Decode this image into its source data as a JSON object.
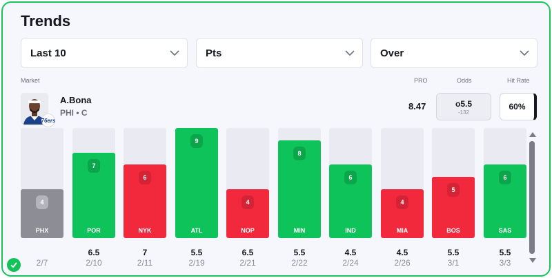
{
  "title": "Trends",
  "filters": [
    {
      "label": "Last 10"
    },
    {
      "label": "Pts"
    },
    {
      "label": "Over"
    }
  ],
  "columns": {
    "market": "Market",
    "pro": "PRO",
    "odds": "Odds",
    "hit_rate": "Hit Rate"
  },
  "player": {
    "name": "A.Bona",
    "team_pos": "PHI • C",
    "team_logo": "76ers"
  },
  "stats": {
    "pro": "8.47",
    "odds_line": "o5.5",
    "odds_price": "-132",
    "hit_rate": "60%"
  },
  "colors": {
    "hit": "#0ec35a",
    "miss": "#f2283c",
    "neutral": "#8d8e95",
    "track": "#eaeaf3",
    "accent": "#16c45a"
  },
  "chart_data": {
    "type": "bar",
    "title": "Trends",
    "ylabel": "Pts",
    "ylim": [
      0,
      9
    ],
    "categories": [
      "PHX",
      "POR",
      "NYK",
      "ATL",
      "NOP",
      "MIN",
      "IND",
      "MIA",
      "BOS",
      "SAS"
    ],
    "values": [
      4,
      7,
      6,
      9,
      4,
      8,
      6,
      4,
      5,
      6
    ],
    "lines": [
      "",
      "6.5",
      "7",
      "5.5",
      "6.5",
      "5.5",
      "4.5",
      "4.5",
      "5.5",
      "5.5"
    ],
    "dates": [
      "2/7",
      "2/10",
      "2/11",
      "2/19",
      "2/21",
      "2/22",
      "2/24",
      "2/26",
      "3/1",
      "3/3"
    ],
    "results": [
      "neutral",
      "hit",
      "miss",
      "hit",
      "miss",
      "hit",
      "hit",
      "miss",
      "miss",
      "hit"
    ]
  }
}
